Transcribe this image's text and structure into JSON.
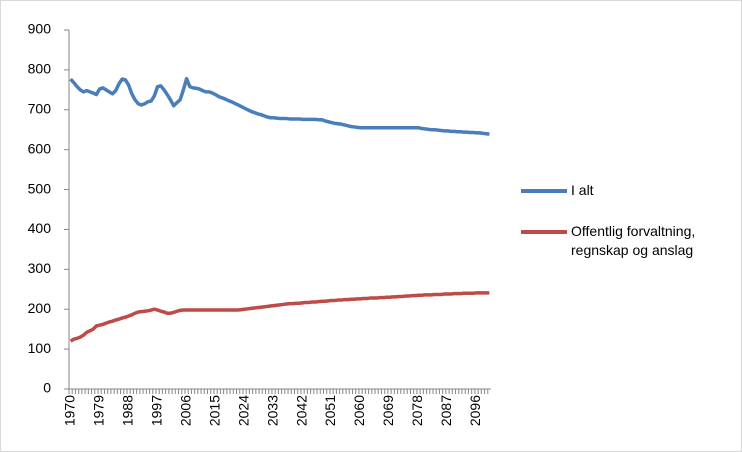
{
  "chart_data": {
    "type": "line",
    "categories": [
      "1970",
      null,
      null,
      null,
      null,
      null,
      null,
      null,
      null,
      "1979",
      null,
      null,
      null,
      null,
      null,
      null,
      null,
      null,
      "1988",
      null,
      null,
      null,
      null,
      null,
      null,
      null,
      null,
      "1997",
      null,
      null,
      null,
      null,
      null,
      null,
      null,
      null,
      "2006",
      null,
      null,
      null,
      null,
      null,
      null,
      null,
      null,
      "2015",
      null,
      null,
      null,
      null,
      null,
      null,
      null,
      null,
      "2024",
      null,
      null,
      null,
      null,
      null,
      null,
      null,
      null,
      "2033",
      null,
      null,
      null,
      null,
      null,
      null,
      null,
      null,
      "2042",
      null,
      null,
      null,
      null,
      null,
      null,
      null,
      null,
      "2051",
      null,
      null,
      null,
      null,
      null,
      null,
      null,
      null,
      "2060",
      null,
      null,
      null,
      null,
      null,
      null,
      null,
      null,
      "2069",
      null,
      null,
      null,
      null,
      null,
      null,
      null,
      null,
      "2078",
      null,
      null,
      null,
      null,
      null,
      null,
      null,
      null,
      "2087",
      null,
      null,
      null,
      null,
      null,
      null,
      null,
      null,
      "2096",
      null,
      null,
      null,
      null
    ],
    "series": [
      {
        "name": "I alt",
        "color": "#4a7ebb",
        "values": [
          777,
          768,
          758,
          750,
          745,
          748,
          745,
          742,
          738,
          752,
          755,
          750,
          745,
          740,
          748,
          765,
          777,
          775,
          762,
          740,
          725,
          715,
          712,
          715,
          720,
          722,
          735,
          758,
          760,
          750,
          738,
          725,
          710,
          718,
          725,
          750,
          778,
          758,
          755,
          754,
          752,
          748,
          745,
          745,
          742,
          738,
          733,
          730,
          727,
          723,
          720,
          716,
          712,
          708,
          704,
          700,
          696,
          693,
          690,
          688,
          685,
          682,
          680,
          680,
          679,
          678,
          678,
          678,
          677,
          677,
          677,
          677,
          676,
          676,
          676,
          676,
          676,
          675,
          675,
          672,
          670,
          668,
          666,
          665,
          664,
          662,
          660,
          658,
          657,
          656,
          655,
          655,
          655,
          655,
          655,
          655,
          655,
          655,
          655,
          655,
          655,
          655,
          655,
          655,
          655,
          655,
          655,
          655,
          655,
          653,
          652,
          651,
          650,
          650,
          649,
          648,
          647,
          647,
          646,
          646,
          645,
          645,
          644,
          644,
          643,
          643,
          642,
          642,
          641,
          640,
          639
        ]
      },
      {
        "name": "Offentlig forvaltning, regnskap og anslag",
        "color": "#be4b48",
        "values": [
          120,
          125,
          127,
          130,
          135,
          142,
          146,
          150,
          158,
          160,
          162,
          165,
          168,
          170,
          173,
          175,
          178,
          180,
          183,
          186,
          190,
          193,
          194,
          195,
          196,
          198,
          200,
          198,
          195,
          193,
          190,
          190,
          192,
          195,
          197,
          198,
          198,
          198,
          198,
          198,
          198,
          198,
          198,
          198,
          198,
          198,
          198,
          198,
          198,
          198,
          198,
          198,
          198,
          199,
          200,
          201,
          202,
          203,
          204,
          205,
          206,
          207,
          208,
          209,
          210,
          211,
          212,
          213,
          214,
          214,
          215,
          215,
          216,
          217,
          217,
          218,
          218,
          219,
          220,
          220,
          221,
          222,
          222,
          223,
          223,
          224,
          224,
          225,
          225,
          226,
          226,
          227,
          227,
          228,
          228,
          228,
          229,
          229,
          230,
          230,
          231,
          231,
          232,
          232,
          233,
          233,
          234,
          234,
          235,
          235,
          236,
          236,
          236,
          237,
          237,
          237,
          238,
          238,
          238,
          239,
          239,
          239,
          240,
          240,
          240,
          240,
          241,
          241,
          241,
          241,
          241
        ]
      }
    ],
    "ylim": [
      0,
      900
    ],
    "yticks": [
      0,
      100,
      200,
      300,
      400,
      500,
      600,
      700,
      800,
      900
    ],
    "grid": false,
    "legend": "right"
  }
}
